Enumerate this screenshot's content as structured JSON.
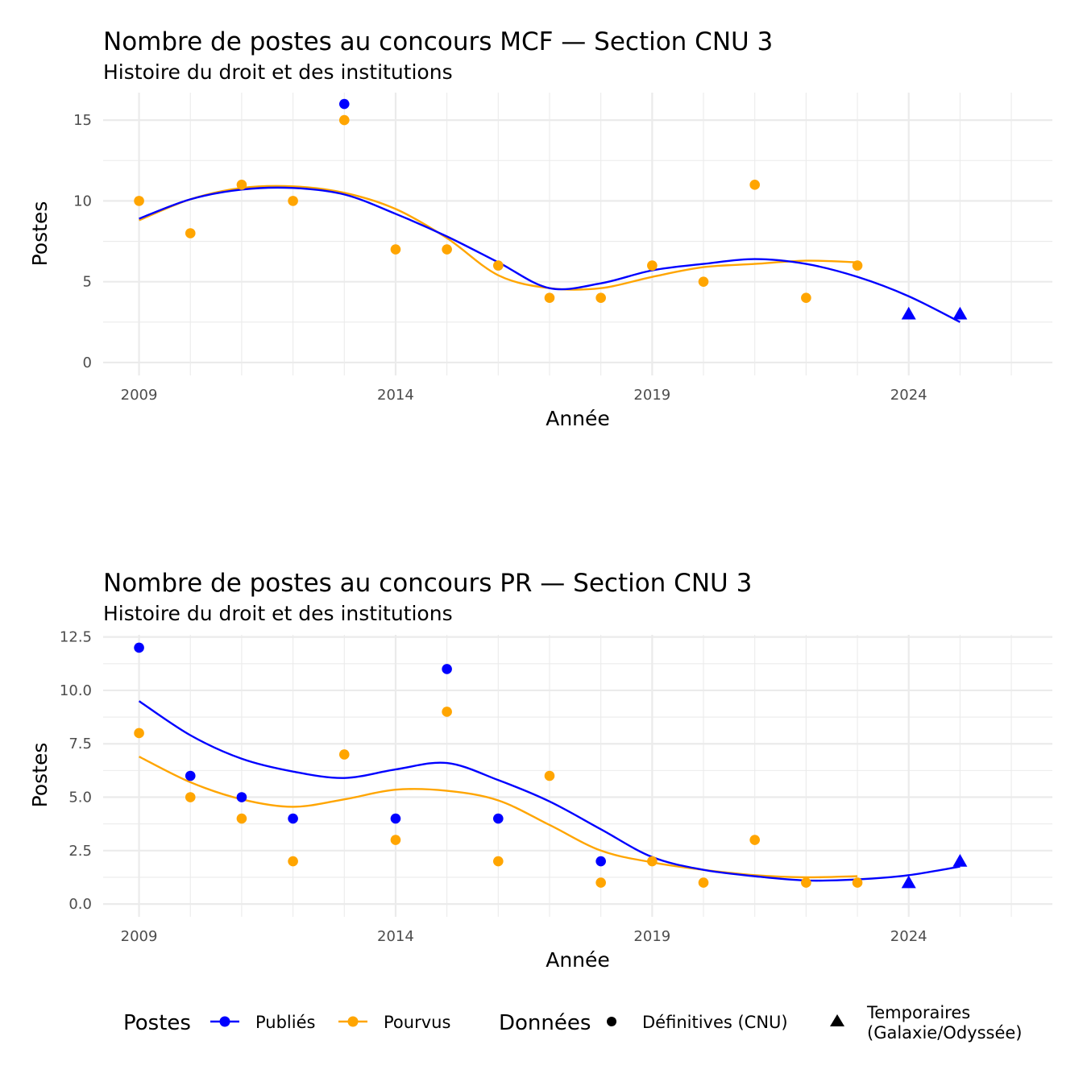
{
  "chart_data": [
    {
      "type": "line",
      "title": "Nombre de postes au concours MCF —  Section CNU 3",
      "subtitle": "Histoire du droit et des institutions",
      "xlabel": "Année",
      "ylabel": "Postes",
      "xlim": [
        2008.3,
        2026.8
      ],
      "ylim": [
        -0.8,
        16.7
      ],
      "x_ticks": [
        2009,
        2014,
        2019,
        2024
      ],
      "y_ticks": [
        0,
        5,
        10,
        15
      ],
      "y_tick_labels": [
        "0",
        "5",
        "10",
        "15"
      ],
      "grid": true,
      "series": [
        {
          "name": "Publiés",
          "color": "#0000ff",
          "points": [
            {
              "x": 2013,
              "y": 16,
              "shape": "circle"
            },
            {
              "x": 2024,
              "y": 3,
              "shape": "triangle"
            },
            {
              "x": 2025,
              "y": 3,
              "shape": "triangle"
            }
          ],
          "smooth": {
            "x": [
              2009,
              2010,
              2011,
              2012,
              2013,
              2014,
              2015,
              2016,
              2017,
              2018,
              2019,
              2020,
              2021,
              2022,
              2023,
              2024,
              2025
            ],
            "y": [
              8.9,
              10.1,
              10.7,
              10.8,
              10.4,
              9.2,
              7.8,
              6.2,
              4.6,
              4.9,
              5.7,
              6.1,
              6.4,
              6.1,
              5.3,
              4.1,
              2.5
            ]
          }
        },
        {
          "name": "Pourvus",
          "color": "#ffa500",
          "points": [
            {
              "x": 2009,
              "y": 10,
              "shape": "circle"
            },
            {
              "x": 2010,
              "y": 8,
              "shape": "circle"
            },
            {
              "x": 2011,
              "y": 11,
              "shape": "circle"
            },
            {
              "x": 2012,
              "y": 10,
              "shape": "circle"
            },
            {
              "x": 2013,
              "y": 15,
              "shape": "circle"
            },
            {
              "x": 2014,
              "y": 7,
              "shape": "circle"
            },
            {
              "x": 2015,
              "y": 7,
              "shape": "circle"
            },
            {
              "x": 2016,
              "y": 6,
              "shape": "circle"
            },
            {
              "x": 2017,
              "y": 4,
              "shape": "circle"
            },
            {
              "x": 2018,
              "y": 4,
              "shape": "circle"
            },
            {
              "x": 2019,
              "y": 6,
              "shape": "circle"
            },
            {
              "x": 2020,
              "y": 5,
              "shape": "circle"
            },
            {
              "x": 2021,
              "y": 11,
              "shape": "circle"
            },
            {
              "x": 2022,
              "y": 4,
              "shape": "circle"
            },
            {
              "x": 2023,
              "y": 6,
              "shape": "circle"
            }
          ],
          "smooth": {
            "x": [
              2009,
              2010,
              2011,
              2012,
              2013,
              2014,
              2015,
              2016,
              2017,
              2018,
              2019,
              2020,
              2021,
              2022,
              2023
            ],
            "y": [
              8.8,
              10.1,
              10.8,
              10.9,
              10.5,
              9.5,
              7.7,
              5.4,
              4.6,
              4.6,
              5.3,
              5.9,
              6.1,
              6.3,
              6.2
            ]
          }
        }
      ]
    },
    {
      "type": "line",
      "title": "Nombre de postes au concours PR —  Section CNU 3",
      "subtitle": "Histoire du droit et des institutions",
      "xlabel": "Année",
      "ylabel": "Postes",
      "xlim": [
        2008.3,
        2026.8
      ],
      "ylim": [
        -0.6,
        12.6
      ],
      "x_ticks": [
        2009,
        2014,
        2019,
        2024
      ],
      "y_ticks": [
        0,
        2.5,
        5,
        7.5,
        10,
        12.5
      ],
      "y_tick_labels": [
        "0.0",
        "2.5",
        "5.0",
        "7.5",
        "10.0",
        "12.5"
      ],
      "grid": true,
      "series": [
        {
          "name": "Publiés",
          "color": "#0000ff",
          "points": [
            {
              "x": 2009,
              "y": 12,
              "shape": "circle"
            },
            {
              "x": 2010,
              "y": 6,
              "shape": "circle"
            },
            {
              "x": 2011,
              "y": 5,
              "shape": "circle"
            },
            {
              "x": 2012,
              "y": 4,
              "shape": "circle"
            },
            {
              "x": 2014,
              "y": 4,
              "shape": "circle"
            },
            {
              "x": 2015,
              "y": 11,
              "shape": "circle"
            },
            {
              "x": 2016,
              "y": 4,
              "shape": "circle"
            },
            {
              "x": 2018,
              "y": 2,
              "shape": "circle"
            },
            {
              "x": 2024,
              "y": 1,
              "shape": "triangle"
            },
            {
              "x": 2025,
              "y": 2,
              "shape": "triangle"
            }
          ],
          "smooth": {
            "x": [
              2009,
              2010,
              2011,
              2012,
              2013,
              2014,
              2015,
              2016,
              2017,
              2018,
              2019,
              2020,
              2021,
              2022,
              2023,
              2024,
              2025
            ],
            "y": [
              9.5,
              7.9,
              6.8,
              6.2,
              5.9,
              6.3,
              6.6,
              5.8,
              4.8,
              3.5,
              2.2,
              1.6,
              1.3,
              1.1,
              1.15,
              1.35,
              1.75
            ]
          }
        },
        {
          "name": "Pourvus",
          "color": "#ffa500",
          "points": [
            {
              "x": 2009,
              "y": 8,
              "shape": "circle"
            },
            {
              "x": 2010,
              "y": 5,
              "shape": "circle"
            },
            {
              "x": 2011,
              "y": 4,
              "shape": "circle"
            },
            {
              "x": 2012,
              "y": 2,
              "shape": "circle"
            },
            {
              "x": 2013,
              "y": 7,
              "shape": "circle"
            },
            {
              "x": 2014,
              "y": 3,
              "shape": "circle"
            },
            {
              "x": 2015,
              "y": 9,
              "shape": "circle"
            },
            {
              "x": 2016,
              "y": 2,
              "shape": "circle"
            },
            {
              "x": 2017,
              "y": 6,
              "shape": "circle"
            },
            {
              "x": 2018,
              "y": 1,
              "shape": "circle"
            },
            {
              "x": 2019,
              "y": 2,
              "shape": "circle"
            },
            {
              "x": 2020,
              "y": 1,
              "shape": "circle"
            },
            {
              "x": 2021,
              "y": 3,
              "shape": "circle"
            },
            {
              "x": 2022,
              "y": 1,
              "shape": "circle"
            },
            {
              "x": 2023,
              "y": 1,
              "shape": "circle"
            }
          ],
          "smooth": {
            "x": [
              2009,
              2010,
              2011,
              2012,
              2013,
              2014,
              2015,
              2016,
              2017,
              2018,
              2019,
              2020,
              2021,
              2022,
              2023
            ],
            "y": [
              6.9,
              5.7,
              4.9,
              4.55,
              4.9,
              5.35,
              5.3,
              4.85,
              3.7,
              2.5,
              1.95,
              1.6,
              1.35,
              1.25,
              1.3
            ]
          }
        }
      ]
    }
  ],
  "legend": {
    "postes_title": "Postes",
    "postes_items": [
      {
        "label": "Publiés",
        "color": "#0000ff"
      },
      {
        "label": "Pourvus",
        "color": "#ffa500"
      }
    ],
    "donnees_title": "Données",
    "donnees_items": [
      {
        "label": "Définitives (CNU)",
        "shape": "circle"
      },
      {
        "label_lines": [
          "Temporaires",
          "(Galaxie/Odyssée)"
        ],
        "shape": "triangle"
      }
    ]
  }
}
